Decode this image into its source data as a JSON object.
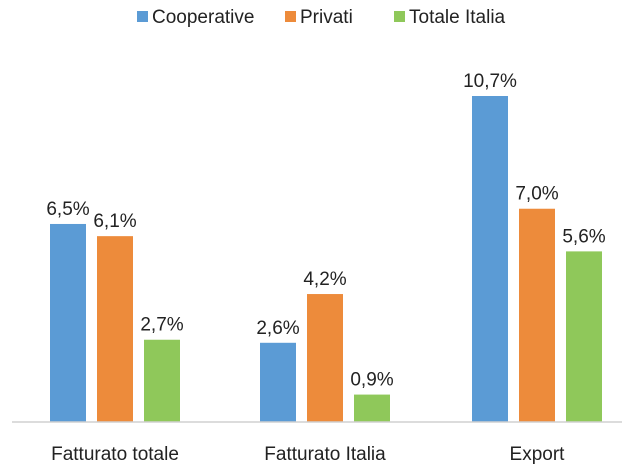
{
  "chart_data": {
    "type": "bar",
    "categories": [
      "Fatturato totale",
      "Fatturato Italia",
      "Export"
    ],
    "series": [
      {
        "name": "Cooperative",
        "color": "#5b9bd5",
        "values": [
          6.5,
          2.6,
          10.7
        ],
        "labels": [
          "6,5%",
          "2,6%",
          "10,7%"
        ]
      },
      {
        "name": "Privati",
        "color": "#ed8b3b",
        "values": [
          6.1,
          4.2,
          7.0
        ],
        "labels": [
          "6,1%",
          "4,2%",
          "7,0%"
        ]
      },
      {
        "name": "Totale Italia",
        "color": "#8fc85a",
        "values": [
          2.7,
          0.9,
          5.6
        ],
        "labels": [
          "2,7%",
          "0,9%",
          "5,6%"
        ]
      }
    ],
    "ylim": [
      0,
      10.7
    ],
    "legend_position": "top",
    "grid": false,
    "title": "",
    "xlabel": "",
    "ylabel": ""
  }
}
